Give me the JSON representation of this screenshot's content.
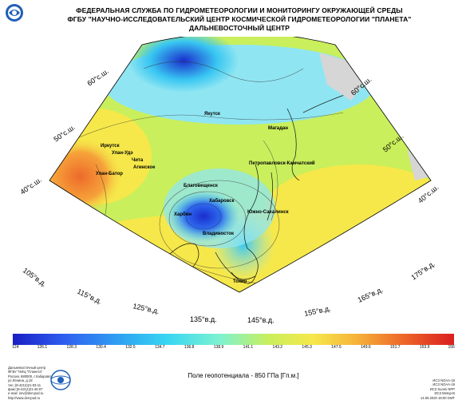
{
  "header": {
    "line1": "ФЕДЕРАЛЬНАЯ СЛУЖБА ПО ГИДРОМЕТЕОРОЛОГИИ И МОНИТОРИНГУ ОКРУЖАЮЩЕЙ СРЕДЫ",
    "line2": "ФГБУ \"НАУЧНО-ИССЛЕДОВАТЕЛЬСКИЙ ЦЕНТР КОСМИЧЕСКОЙ ГИДРОМЕТЕОРОЛОГИИ \"ПЛАНЕТА\"",
    "line3": "ДАЛЬНЕВОСТОЧНЫЙ ЦЕНТР"
  },
  "map": {
    "cities": {
      "yakutsk": "Якутск",
      "magadan": "Магадан",
      "irkutsk": "Иркутск",
      "ulan_ude": "Улан-Удэ",
      "chita": "Чита",
      "aginskoe": "Агинское",
      "ulaanbaatar": "Улан-Батор",
      "blagoveshchensk": "Благовещенск",
      "khabarovsk": "Хабаровск",
      "harbin": "Харбин",
      "vladivostok": "Владивосток",
      "petropavlovsk": "Петропавловск-Камчатский",
      "yuzhno_sakhalinsk": "Южно-Сахалинск",
      "tokyo": "Токио"
    },
    "latitudes": {
      "lat60_left": "60°с.ш.",
      "lat50_left": "50°с.ш.",
      "lat40_left": "40°с.ш.",
      "lat60_right": "60°с.ш.",
      "lat50_right": "50°с.ш.",
      "lat40_right": "40°с.ш."
    },
    "longitudes": {
      "lon105": "105°в.д.",
      "lon115": "115°в.д.",
      "lon125": "125°в.д.",
      "lon135": "135°в.д.",
      "lon145": "145°в.д.",
      "lon155": "155°в.д.",
      "lon165": "165°в.д.",
      "lon175": "175°в.д."
    },
    "colors": {
      "deep_blue": "#1a2ecc",
      "blue": "#2f6bf0",
      "cyan": "#38c6f2",
      "light_cyan": "#8fe6f2",
      "green_yellow": "#c9ef5c",
      "yellow": "#f6e84a",
      "orange": "#f6a23a",
      "red_orange": "#ee6a2a",
      "red": "#e3301f",
      "land_gray": "#d6d6d6"
    }
  },
  "colorbar": {
    "ticks": [
      "124",
      "126.1",
      "128.3",
      "130.4",
      "132.5",
      "134.7",
      "136.8",
      "138.9",
      "141.1",
      "143.2",
      "145.3",
      "147.5",
      "149.6",
      "151.7",
      "153.9",
      "156"
    ]
  },
  "footer": {
    "left": [
      "Дальневосточный центр",
      "ФГБУ \"НИЦ \"Планета\"",
      "Россия, 680000, г.Хабаровск",
      "ул.Ленина, д.18",
      "тел.:(8-4212)21-03-11",
      "факс:(8-4212)21-40-07",
      "e-mail: iorv@dvrcpod.ru",
      "http://www.dvrcpod.ru"
    ],
    "title": "Поле геопотенциала - 850 ГПа [Гп.м.]",
    "right": [
      "ИСЗ NOAA-18",
      "ИСЗ NOAA-19",
      "ИСЗ Suomi NPP",
      "ИСЗ Metop-B",
      "14.06.2020 18:00 GMT"
    ]
  }
}
